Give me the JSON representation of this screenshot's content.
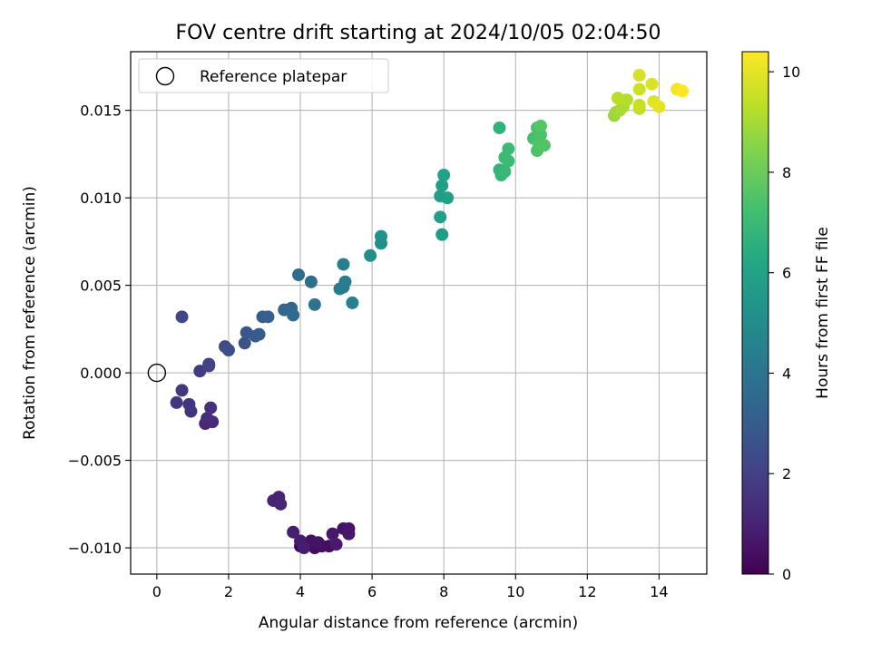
{
  "chart_data": {
    "type": "scatter",
    "title": "FOV centre drift starting at 2024/10/05 02:04:50",
    "xlabel": "Angular distance from reference (arcmin)",
    "ylabel": "Rotation from reference (arcmin)",
    "xlim": [
      -0.73,
      15.33
    ],
    "ylim": [
      -0.0115,
      0.01835
    ],
    "xticks": [
      "0",
      "2",
      "4",
      "6",
      "8",
      "10",
      "12",
      "14"
    ],
    "yticks": [
      "−0.010",
      "−0.005",
      "0.000",
      "0.005",
      "0.010",
      "0.015"
    ],
    "xtick_values": [
      0,
      2,
      4,
      6,
      8,
      10,
      12,
      14
    ],
    "ytick_values": [
      -0.01,
      -0.005,
      0.0,
      0.005,
      0.01,
      0.015
    ],
    "grid": true,
    "legend": {
      "position": "top-left",
      "label": "Reference platepar"
    },
    "reference_point": {
      "x": 0,
      "y": 0
    },
    "colorbar": {
      "label": "Hours from first FF file",
      "range": [
        0,
        10.4
      ],
      "ticks": [
        "0",
        "2",
        "4",
        "6",
        "8",
        "10"
      ],
      "tick_values": [
        0,
        2,
        4,
        6,
        8,
        10
      ],
      "colormap": "viridis"
    },
    "points": [
      {
        "x": 4.0,
        "y": -0.0099,
        "h": 0.1
      },
      {
        "x": 4.2,
        "y": -0.0098,
        "h": 0.2
      },
      {
        "x": 4.4,
        "y": -0.01,
        "h": 0.3
      },
      {
        "x": 4.6,
        "y": -0.0099,
        "h": 0.35
      },
      {
        "x": 4.8,
        "y": -0.0099,
        "h": 0.4
      },
      {
        "x": 4.3,
        "y": -0.0096,
        "h": 0.45
      },
      {
        "x": 4.5,
        "y": -0.0097,
        "h": 0.5
      },
      {
        "x": 5.2,
        "y": -0.0089,
        "h": 0.55
      },
      {
        "x": 5.35,
        "y": -0.0089,
        "h": 0.6
      },
      {
        "x": 5.35,
        "y": -0.0092,
        "h": 0.65
      },
      {
        "x": 4.9,
        "y": -0.0092,
        "h": 0.7
      },
      {
        "x": 5.0,
        "y": -0.0098,
        "h": 0.75
      },
      {
        "x": 4.0,
        "y": -0.0096,
        "h": 0.8
      },
      {
        "x": 4.1,
        "y": -0.01,
        "h": 0.85
      },
      {
        "x": 3.8,
        "y": -0.0091,
        "h": 0.9
      },
      {
        "x": 3.4,
        "y": -0.0071,
        "h": 1.0
      },
      {
        "x": 3.25,
        "y": -0.0073,
        "h": 1.05
      },
      {
        "x": 3.45,
        "y": -0.0075,
        "h": 1.1
      },
      {
        "x": 1.35,
        "y": -0.0029,
        "h": 1.2
      },
      {
        "x": 1.55,
        "y": -0.0028,
        "h": 1.3
      },
      {
        "x": 1.4,
        "y": -0.0026,
        "h": 1.35
      },
      {
        "x": 1.5,
        "y": -0.002,
        "h": 1.4
      },
      {
        "x": 0.95,
        "y": -0.0022,
        "h": 1.5
      },
      {
        "x": 0.9,
        "y": -0.0018,
        "h": 1.55
      },
      {
        "x": 0.55,
        "y": -0.0017,
        "h": 1.6
      },
      {
        "x": 0.7,
        "y": -0.001,
        "h": 1.65
      },
      {
        "x": 1.2,
        "y": 0.0001,
        "h": 1.8
      },
      {
        "x": 1.45,
        "y": 0.0004,
        "h": 1.9
      },
      {
        "x": 1.45,
        "y": 0.0005,
        "h": 2.0
      },
      {
        "x": 0.7,
        "y": 0.0032,
        "h": 2.2
      },
      {
        "x": 1.9,
        "y": 0.0015,
        "h": 2.4
      },
      {
        "x": 2.0,
        "y": 0.0013,
        "h": 2.5
      },
      {
        "x": 2.45,
        "y": 0.0017,
        "h": 2.7
      },
      {
        "x": 2.5,
        "y": 0.0023,
        "h": 2.8
      },
      {
        "x": 2.75,
        "y": 0.0021,
        "h": 2.9
      },
      {
        "x": 2.85,
        "y": 0.0022,
        "h": 3.0
      },
      {
        "x": 2.95,
        "y": 0.0032,
        "h": 3.1
      },
      {
        "x": 3.1,
        "y": 0.0032,
        "h": 3.2
      },
      {
        "x": 3.55,
        "y": 0.0036,
        "h": 3.4
      },
      {
        "x": 3.75,
        "y": 0.0037,
        "h": 3.5
      },
      {
        "x": 3.8,
        "y": 0.0033,
        "h": 3.6
      },
      {
        "x": 3.95,
        "y": 0.0056,
        "h": 3.7
      },
      {
        "x": 4.3,
        "y": 0.0052,
        "h": 3.8
      },
      {
        "x": 4.4,
        "y": 0.0039,
        "h": 3.9
      },
      {
        "x": 5.1,
        "y": 0.0048,
        "h": 4.2
      },
      {
        "x": 5.2,
        "y": 0.0049,
        "h": 4.3
      },
      {
        "x": 5.25,
        "y": 0.0052,
        "h": 4.35
      },
      {
        "x": 5.2,
        "y": 0.0062,
        "h": 4.4
      },
      {
        "x": 5.45,
        "y": 0.004,
        "h": 4.5
      },
      {
        "x": 5.95,
        "y": 0.0067,
        "h": 5.0
      },
      {
        "x": 6.25,
        "y": 0.0074,
        "h": 5.1
      },
      {
        "x": 6.25,
        "y": 0.0078,
        "h": 5.2
      },
      {
        "x": 7.95,
        "y": 0.0079,
        "h": 5.7
      },
      {
        "x": 7.9,
        "y": 0.0089,
        "h": 5.75
      },
      {
        "x": 7.9,
        "y": 0.0101,
        "h": 5.8
      },
      {
        "x": 8.1,
        "y": 0.01,
        "h": 5.85
      },
      {
        "x": 7.95,
        "y": 0.0107,
        "h": 5.9
      },
      {
        "x": 8.0,
        "y": 0.0113,
        "h": 5.95
      },
      {
        "x": 9.55,
        "y": 0.014,
        "h": 6.7
      },
      {
        "x": 9.55,
        "y": 0.0116,
        "h": 6.8
      },
      {
        "x": 9.6,
        "y": 0.0113,
        "h": 6.85
      },
      {
        "x": 9.7,
        "y": 0.0115,
        "h": 6.9
      },
      {
        "x": 9.7,
        "y": 0.0123,
        "h": 6.95
      },
      {
        "x": 9.8,
        "y": 0.0121,
        "h": 7.0
      },
      {
        "x": 9.8,
        "y": 0.0128,
        "h": 7.05
      },
      {
        "x": 10.5,
        "y": 0.0134,
        "h": 7.3
      },
      {
        "x": 10.6,
        "y": 0.014,
        "h": 7.35
      },
      {
        "x": 10.7,
        "y": 0.0136,
        "h": 7.4
      },
      {
        "x": 10.6,
        "y": 0.0127,
        "h": 7.45
      },
      {
        "x": 10.65,
        "y": 0.0131,
        "h": 7.5
      },
      {
        "x": 10.8,
        "y": 0.013,
        "h": 7.55
      },
      {
        "x": 10.7,
        "y": 0.0141,
        "h": 7.6
      },
      {
        "x": 12.75,
        "y": 0.0147,
        "h": 8.8
      },
      {
        "x": 12.8,
        "y": 0.0149,
        "h": 8.9
      },
      {
        "x": 12.9,
        "y": 0.015,
        "h": 9.0
      },
      {
        "x": 13.0,
        "y": 0.0152,
        "h": 9.1
      },
      {
        "x": 13.1,
        "y": 0.0156,
        "h": 9.2
      },
      {
        "x": 12.85,
        "y": 0.0157,
        "h": 9.3
      },
      {
        "x": 13.45,
        "y": 0.0151,
        "h": 9.4
      },
      {
        "x": 13.45,
        "y": 0.0153,
        "h": 9.5
      },
      {
        "x": 13.45,
        "y": 0.0162,
        "h": 9.6
      },
      {
        "x": 13.45,
        "y": 0.017,
        "h": 9.7
      },
      {
        "x": 13.8,
        "y": 0.0165,
        "h": 9.8
      },
      {
        "x": 13.85,
        "y": 0.0155,
        "h": 9.9
      },
      {
        "x": 14.0,
        "y": 0.0152,
        "h": 10.0
      },
      {
        "x": 14.5,
        "y": 0.0162,
        "h": 10.2
      },
      {
        "x": 14.65,
        "y": 0.0161,
        "h": 10.4
      }
    ]
  }
}
